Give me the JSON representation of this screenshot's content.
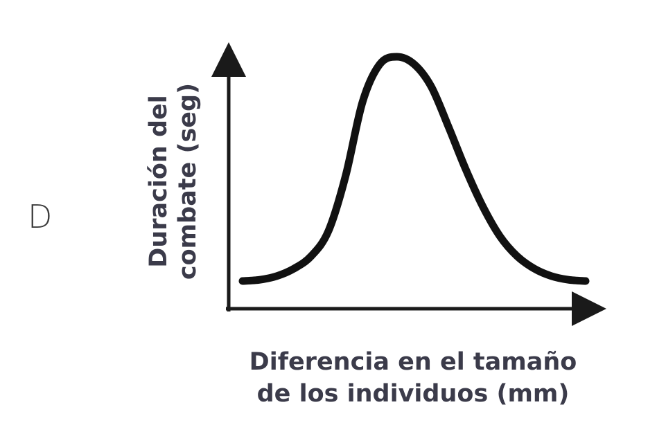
{
  "option_letter": "D",
  "chart_data": {
    "type": "line",
    "title": "",
    "ylabel_lines": [
      "Duración del",
      "combate (seg)"
    ],
    "xlabel_lines": [
      "Diferencia en el tamaño",
      "de los individuos (mm)"
    ],
    "ylabel": "Duración del combate (seg)",
    "xlabel": "Diferencia en el tamaño de los individuos (mm)",
    "axis_ticks": "none",
    "grid": false,
    "series": [
      {
        "shape": "bell",
        "x": [
          0,
          5,
          10,
          15,
          20,
          25,
          30,
          35,
          40,
          45,
          50,
          55,
          60,
          65,
          70,
          75,
          80,
          85,
          90,
          95,
          100
        ],
        "y": [
          10,
          10.5,
          12,
          15,
          20,
          30,
          52,
          82,
          97,
          100,
          97,
          88,
          72,
          55,
          40,
          28,
          20,
          15,
          12,
          10.5,
          10
        ]
      }
    ],
    "xlim": [
      0,
      100
    ],
    "ylim": [
      0,
      100
    ]
  }
}
